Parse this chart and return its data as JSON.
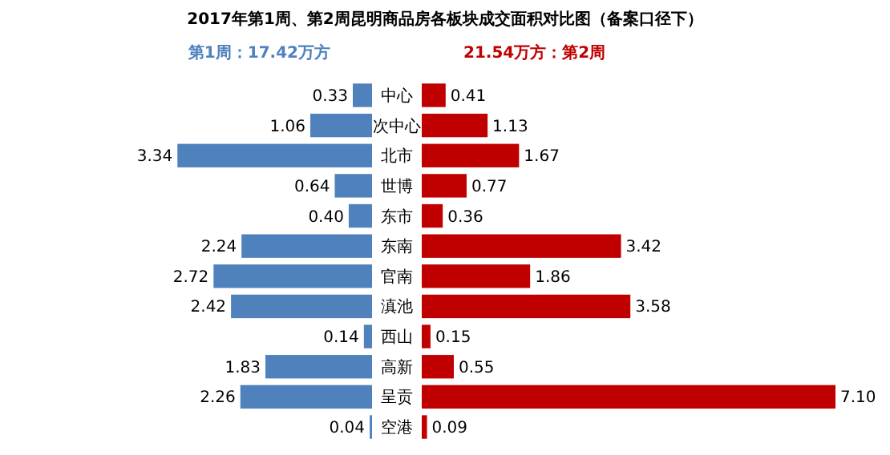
{
  "chart_data": [
    {
      "type": "bar",
      "orientation": "horizontal",
      "title": "2017年第1周、第2周昆明商品房各板块成交面积对比图（备案口径下）",
      "categories": [
        "中心",
        "次中心",
        "北市",
        "世博",
        "东市",
        "东南",
        "官南",
        "滇池",
        "西山",
        "高新",
        "呈贡",
        "空港"
      ],
      "series": [
        {
          "name": "第1周：17.42万方",
          "color": "#4f81bd",
          "values": [
            0.33,
            1.06,
            3.34,
            0.64,
            0.4,
            2.24,
            2.72,
            2.42,
            0.14,
            1.83,
            2.26,
            0.04
          ],
          "value_labels": [
            "0.33",
            "1.06",
            "3.34",
            "0.64",
            "0.40",
            "2.24",
            "2.72",
            "2.42",
            "0.14",
            "1.83",
            "2.26",
            "0.04"
          ]
        }
      ]
    },
    {
      "type": "bar",
      "orientation": "horizontal",
      "categories": [
        null,
        null,
        null,
        null,
        null,
        null,
        null,
        null,
        null,
        null,
        null,
        null
      ],
      "series": [
        {
          "name": "21.54万方：第2周",
          "color": "#c00000",
          "values": [
            0.41,
            1.13,
            1.67,
            0.77,
            0.36,
            3.42,
            1.86,
            3.58,
            0.15,
            0.55,
            7.1,
            0.09
          ],
          "value_labels": [
            "0.41",
            "1.13",
            "1.67",
            "0.77",
            "0.36",
            "3.42",
            "1.86",
            "3.58",
            "0.15",
            "0.55",
            "7.10",
            "0.09"
          ]
        }
      ]
    }
  ]
}
